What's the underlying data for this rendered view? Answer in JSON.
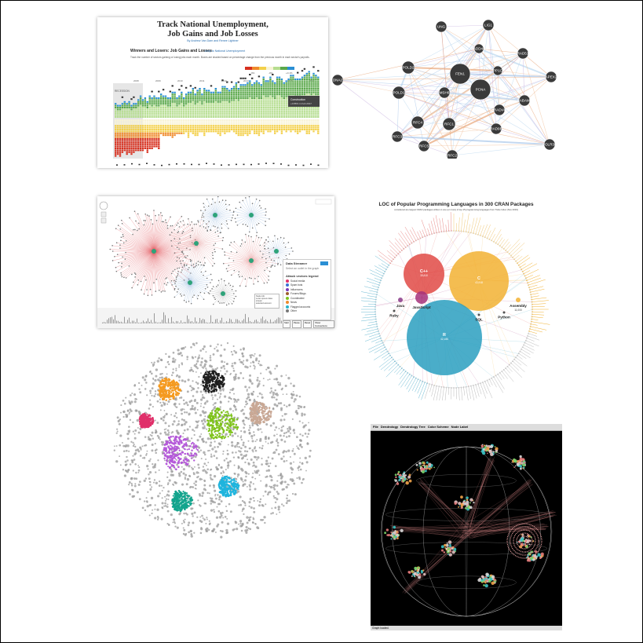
{
  "panel1": {
    "title": "Track National Unemployment, Job Gains and Job Losses",
    "title_line1": "Track National Unemployment,",
    "title_line2": "Job Gains and Job Losses",
    "byline": "By Andrew Van Dam and Renee Lightner",
    "section_title": "Winners and Losers: Job Gains and Losses",
    "section_link": "Jump to National Unemployment",
    "description": "Track the number of sectors gaining or losing jobs each month. Boxes are shaded based on percentage change from the previous month in each sector's payrolls.",
    "recession_label": "RECESSION",
    "tooltip_title": "Construction",
    "tooltip_value": "+0.86% in Feb 2017",
    "year_labels": [
      "2008",
      "2009",
      "2010",
      "2011",
      "2012",
      "2013",
      "2014",
      "2015",
      "2016",
      "2017"
    ],
    "legend_labels": [
      "0%",
      "-0%",
      "+0.1%"
    ],
    "colors": {
      "green": "#5aa84a",
      "lightgreen": "#b5dd8f",
      "yellow": "#f3d04a",
      "orange": "#ef8a2b",
      "red": "#d7301f",
      "blue": "#2a8fd4",
      "cream": "#f8f3d5"
    }
  },
  "panel2": {
    "nodes": [
      "LIG1",
      "UNG",
      "GADD45A",
      "RAD51",
      "POLD2",
      "FEN1",
      "PPP1CA",
      "APEX2",
      "DNA2",
      "PCNA",
      "POLD1",
      "MSH6",
      "RADIA",
      "BABAM1",
      "RFC4",
      "RFC1",
      "RAD9B",
      "RFC3",
      "RFC5",
      "RFC2",
      "POLR3K"
    ]
  },
  "panel3": {
    "panel_title": "Data Streamer",
    "panel_subtitle": "Select an outlet in the graph",
    "legend_title": "Attack vectors legend",
    "legend_items": [
      "Social media",
      "Spam bots",
      "Influencers",
      "Forums/Blogs",
      "Coordinated",
      "News",
      "Flagged accounts",
      "Other"
    ],
    "tooltip_lines": [
      "Node info",
      "Lorem ipsum data stream",
      "selected account"
    ],
    "buttons": [
      "Start",
      "Pause",
      "Reset",
      "Show Connections"
    ]
  },
  "panel4": {
    "title": "LOC of Popular Programming Languages in 300 CRAN Packages",
    "subtitle": "considered are largest CRAN packages written in one (or more) of top 15 programming languages from Tiobe Index (Nov 2019)",
    "bubbles": [
      {
        "label": "C++",
        "value": "15,810"
      },
      {
        "label": "C",
        "value": "43,918"
      },
      {
        "label": "R",
        "value": "42,186"
      },
      {
        "label": "JavaScript",
        "value": ""
      },
      {
        "label": "Java",
        "value": ""
      },
      {
        "label": "Ruby",
        "value": ""
      },
      {
        "label": "SQL",
        "value": ""
      },
      {
        "label": "Python",
        "value": ""
      },
      {
        "label": "Assembly",
        "value": "11,000"
      }
    ],
    "colors": {
      "cpp": "#e04a45",
      "c": "#f2b233",
      "r": "#2a9fbf",
      "js": "#a6317a"
    }
  },
  "panel5": {
    "cluster_colors": [
      "#f59a1f",
      "#1e1e1e",
      "#c9a895",
      "#e0306a",
      "#7fc31c",
      "#b458d9",
      "#1fb4dd",
      "#12a48d"
    ]
  },
  "panel6": {
    "menu_items": [
      "File",
      "Dendrology",
      "Dendrology Tree",
      "Color Scheme",
      "Node Label"
    ],
    "status_text": "Graph loaded."
  }
}
